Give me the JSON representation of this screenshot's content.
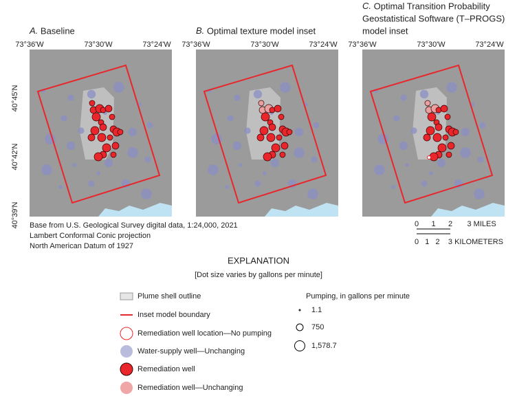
{
  "panels": [
    {
      "letter": "A.",
      "title": [
        "Baseline"
      ]
    },
    {
      "letter": "B.",
      "title": [
        "Optimal texture model inset"
      ]
    },
    {
      "letter": "C.",
      "title": [
        "Optimal Transition Probability",
        "Geostatistical Software (T–PROGS)",
        "model inset"
      ]
    }
  ],
  "x_labels": [
    "73°36'W",
    "73°30'W",
    "73°24'W"
  ],
  "y_labels": [
    "40°45'N",
    "40°42'N",
    "40°39'N"
  ],
  "credits": [
    "Base from U.S. Geological Survey digital data, 1:24,000, 2021",
    "Lambert Conformal Conic projection",
    "North American Datum of 1927"
  ],
  "scale": {
    "miles": [
      "0",
      "1",
      "2",
      "3 MILES"
    ],
    "kilometers": [
      "0",
      "1",
      "2",
      "3 KILOMETERS"
    ]
  },
  "explanation": {
    "title": "EXPLANATION",
    "subtitle": "[Dot size varies by gallons per minute]",
    "items": [
      "Plume shell outline",
      "Inset model boundary",
      "Remediation well location—No pumping",
      "Water-supply well—Unchanging",
      "Remediation well",
      "Remediation well—Unchanging"
    ],
    "pumping_title": "Pumping, in gallons per minute",
    "pumping": [
      "1.1",
      "750",
      "1,578.7"
    ]
  }
}
